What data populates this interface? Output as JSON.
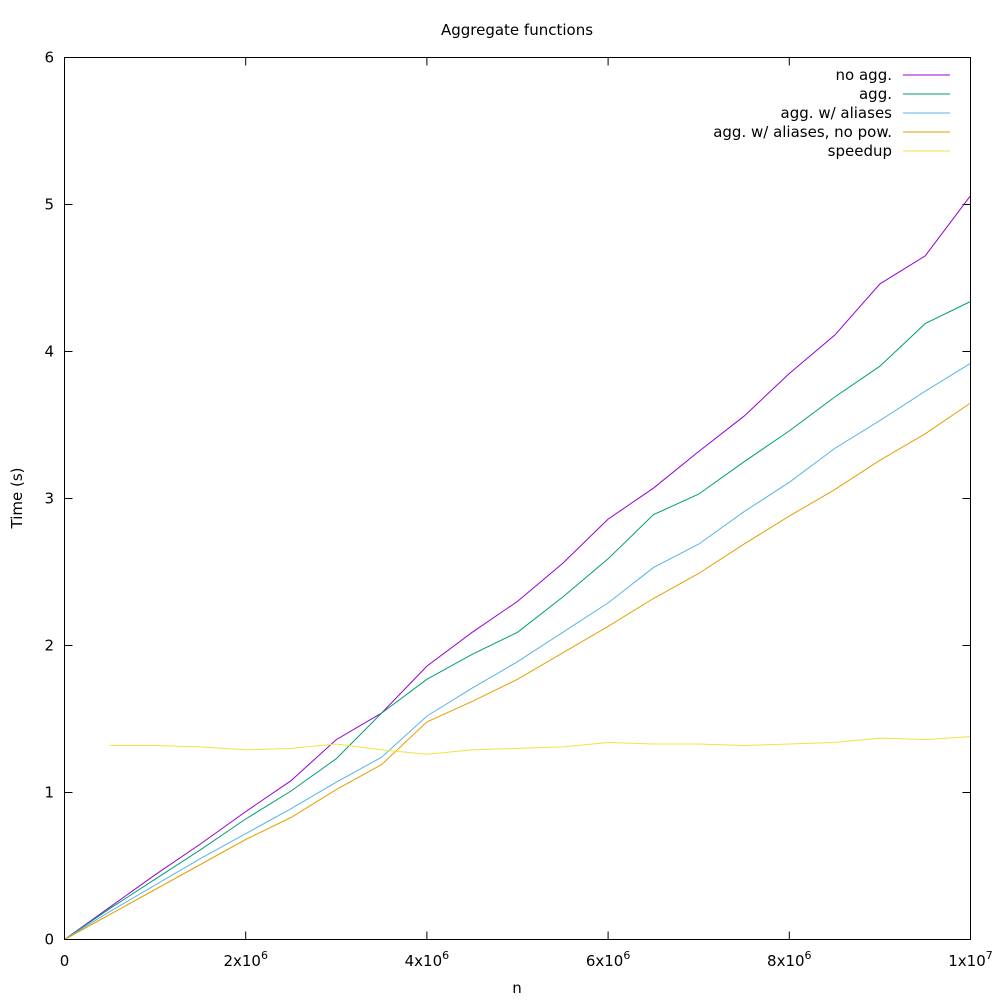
{
  "chart_data": {
    "type": "line",
    "title": "Aggregate functions",
    "xlabel": "n",
    "ylabel": "Time (s)",
    "xlim": [
      0,
      10000000
    ],
    "ylim": [
      0,
      6
    ],
    "grid": false,
    "legend_position": "top-right",
    "x_ticks": [
      {
        "value": 0,
        "base": "0",
        "exp": ""
      },
      {
        "value": 2000000,
        "base": "2x10",
        "exp": "6"
      },
      {
        "value": 4000000,
        "base": "4x10",
        "exp": "6"
      },
      {
        "value": 6000000,
        "base": "6x10",
        "exp": "6"
      },
      {
        "value": 8000000,
        "base": "8x10",
        "exp": "6"
      },
      {
        "value": 10000000,
        "base": "1x10",
        "exp": "7"
      }
    ],
    "y_ticks": [
      {
        "value": 0,
        "label": "0"
      },
      {
        "value": 1,
        "label": "1"
      },
      {
        "value": 2,
        "label": "2"
      },
      {
        "value": 3,
        "label": "3"
      },
      {
        "value": 4,
        "label": "4"
      },
      {
        "value": 5,
        "label": "5"
      },
      {
        "value": 6,
        "label": "6"
      }
    ],
    "series": [
      {
        "name": "no agg.",
        "color": "#9400d3",
        "x": [
          0,
          500000,
          1000000,
          1500000,
          2000000,
          2500000,
          3000000,
          3500000,
          4000000,
          4500000,
          5000000,
          5500000,
          6000000,
          6500000,
          7000000,
          7500000,
          8000000,
          8500000,
          9000000,
          9500000,
          10000000
        ],
        "y": [
          0,
          0.22,
          0.44,
          0.65,
          0.87,
          1.08,
          1.36,
          1.54,
          1.86,
          2.09,
          2.3,
          2.56,
          2.86,
          3.07,
          3.32,
          3.56,
          3.85,
          4.11,
          4.46,
          4.65,
          5.06
        ]
      },
      {
        "name": "agg.",
        "color": "#009e73",
        "x": [
          0,
          500000,
          1000000,
          1500000,
          2000000,
          2500000,
          3000000,
          3500000,
          4000000,
          4500000,
          5000000,
          5500000,
          6000000,
          6500000,
          7000000,
          7500000,
          8000000,
          8500000,
          9000000,
          9500000,
          10000000
        ],
        "y": [
          0,
          0.21,
          0.41,
          0.61,
          0.82,
          1.01,
          1.23,
          1.54,
          1.77,
          1.94,
          2.09,
          2.33,
          2.59,
          2.89,
          3.03,
          3.25,
          3.46,
          3.69,
          3.9,
          4.19,
          4.34
        ]
      },
      {
        "name": "agg. w/ aliases",
        "color": "#56b4e9",
        "x": [
          0,
          500000,
          1000000,
          1500000,
          2000000,
          2500000,
          3000000,
          3500000,
          4000000,
          4500000,
          5000000,
          5500000,
          6000000,
          6500000,
          7000000,
          7500000,
          8000000,
          8500000,
          9000000,
          9500000,
          10000000
        ],
        "y": [
          0,
          0.19,
          0.37,
          0.55,
          0.72,
          0.89,
          1.07,
          1.24,
          1.52,
          1.71,
          1.89,
          2.09,
          2.29,
          2.53,
          2.69,
          2.91,
          3.11,
          3.34,
          3.53,
          3.73,
          3.92
        ]
      },
      {
        "name": "agg. w/ aliases, no pow.",
        "color": "#e69f00",
        "x": [
          0,
          500000,
          1000000,
          1500000,
          2000000,
          2500000,
          3000000,
          3500000,
          4000000,
          4500000,
          5000000,
          5500000,
          6000000,
          6500000,
          7000000,
          7500000,
          8000000,
          8500000,
          9000000,
          9500000,
          10000000
        ],
        "y": [
          0,
          0.17,
          0.34,
          0.51,
          0.68,
          0.83,
          1.02,
          1.19,
          1.48,
          1.62,
          1.77,
          1.95,
          2.13,
          2.32,
          2.49,
          2.69,
          2.88,
          3.06,
          3.26,
          3.44,
          3.65
        ]
      },
      {
        "name": "speedup",
        "color": "#f0e442",
        "x": [
          500000,
          1000000,
          1500000,
          2000000,
          2500000,
          3000000,
          3500000,
          4000000,
          4500000,
          5000000,
          5500000,
          6000000,
          6500000,
          7000000,
          7500000,
          8000000,
          8500000,
          9000000,
          9500000,
          10000000
        ],
        "y": [
          1.32,
          1.32,
          1.31,
          1.29,
          1.3,
          1.33,
          1.29,
          1.26,
          1.29,
          1.3,
          1.31,
          1.34,
          1.33,
          1.33,
          1.32,
          1.33,
          1.34,
          1.37,
          1.36,
          1.38
        ]
      }
    ]
  }
}
